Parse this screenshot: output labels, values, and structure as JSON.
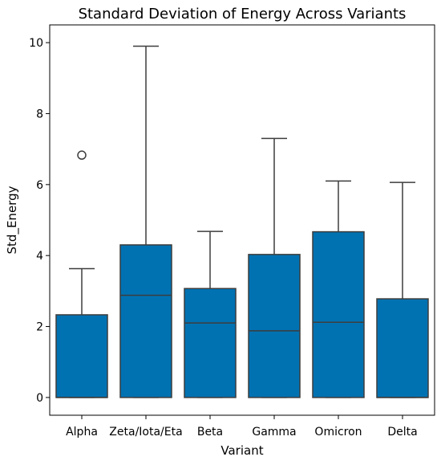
{
  "chart_data": {
    "type": "box",
    "title": "Standard Deviation of Energy Across Variants",
    "xlabel": "Variant",
    "ylabel": "Std_Energy",
    "ylim": [
      -0.5,
      10.5
    ],
    "yticks": [
      0,
      2,
      4,
      6,
      8,
      10
    ],
    "grid": false,
    "box_color": "#0072b2",
    "line_color": "#3d3d3d",
    "categories": [
      "Alpha",
      "Zeta/Iota/Eta",
      "Beta",
      "Gamma",
      "Omicron",
      "Delta"
    ],
    "boxes": [
      {
        "category": "Alpha",
        "whisker_low": 0,
        "q1": 0,
        "median": 0,
        "q3": 2.33,
        "whisker_high": 3.63,
        "outliers": [
          6.83
        ]
      },
      {
        "category": "Zeta/Iota/Eta",
        "whisker_low": 0,
        "q1": 0,
        "median": 2.88,
        "q3": 4.3,
        "whisker_high": 9.9,
        "outliers": []
      },
      {
        "category": "Beta",
        "whisker_low": 0,
        "q1": 0,
        "median": 2.1,
        "q3": 3.07,
        "whisker_high": 4.68,
        "outliers": []
      },
      {
        "category": "Gamma",
        "whisker_low": 0,
        "q1": 0,
        "median": 1.88,
        "q3": 4.03,
        "whisker_high": 7.3,
        "outliers": []
      },
      {
        "category": "Omicron",
        "whisker_low": 0,
        "q1": 0,
        "median": 2.12,
        "q3": 4.67,
        "whisker_high": 6.1,
        "outliers": []
      },
      {
        "category": "Delta",
        "whisker_low": 0,
        "q1": 0,
        "median": 0,
        "q3": 2.78,
        "whisker_high": 6.06,
        "outliers": []
      }
    ]
  }
}
